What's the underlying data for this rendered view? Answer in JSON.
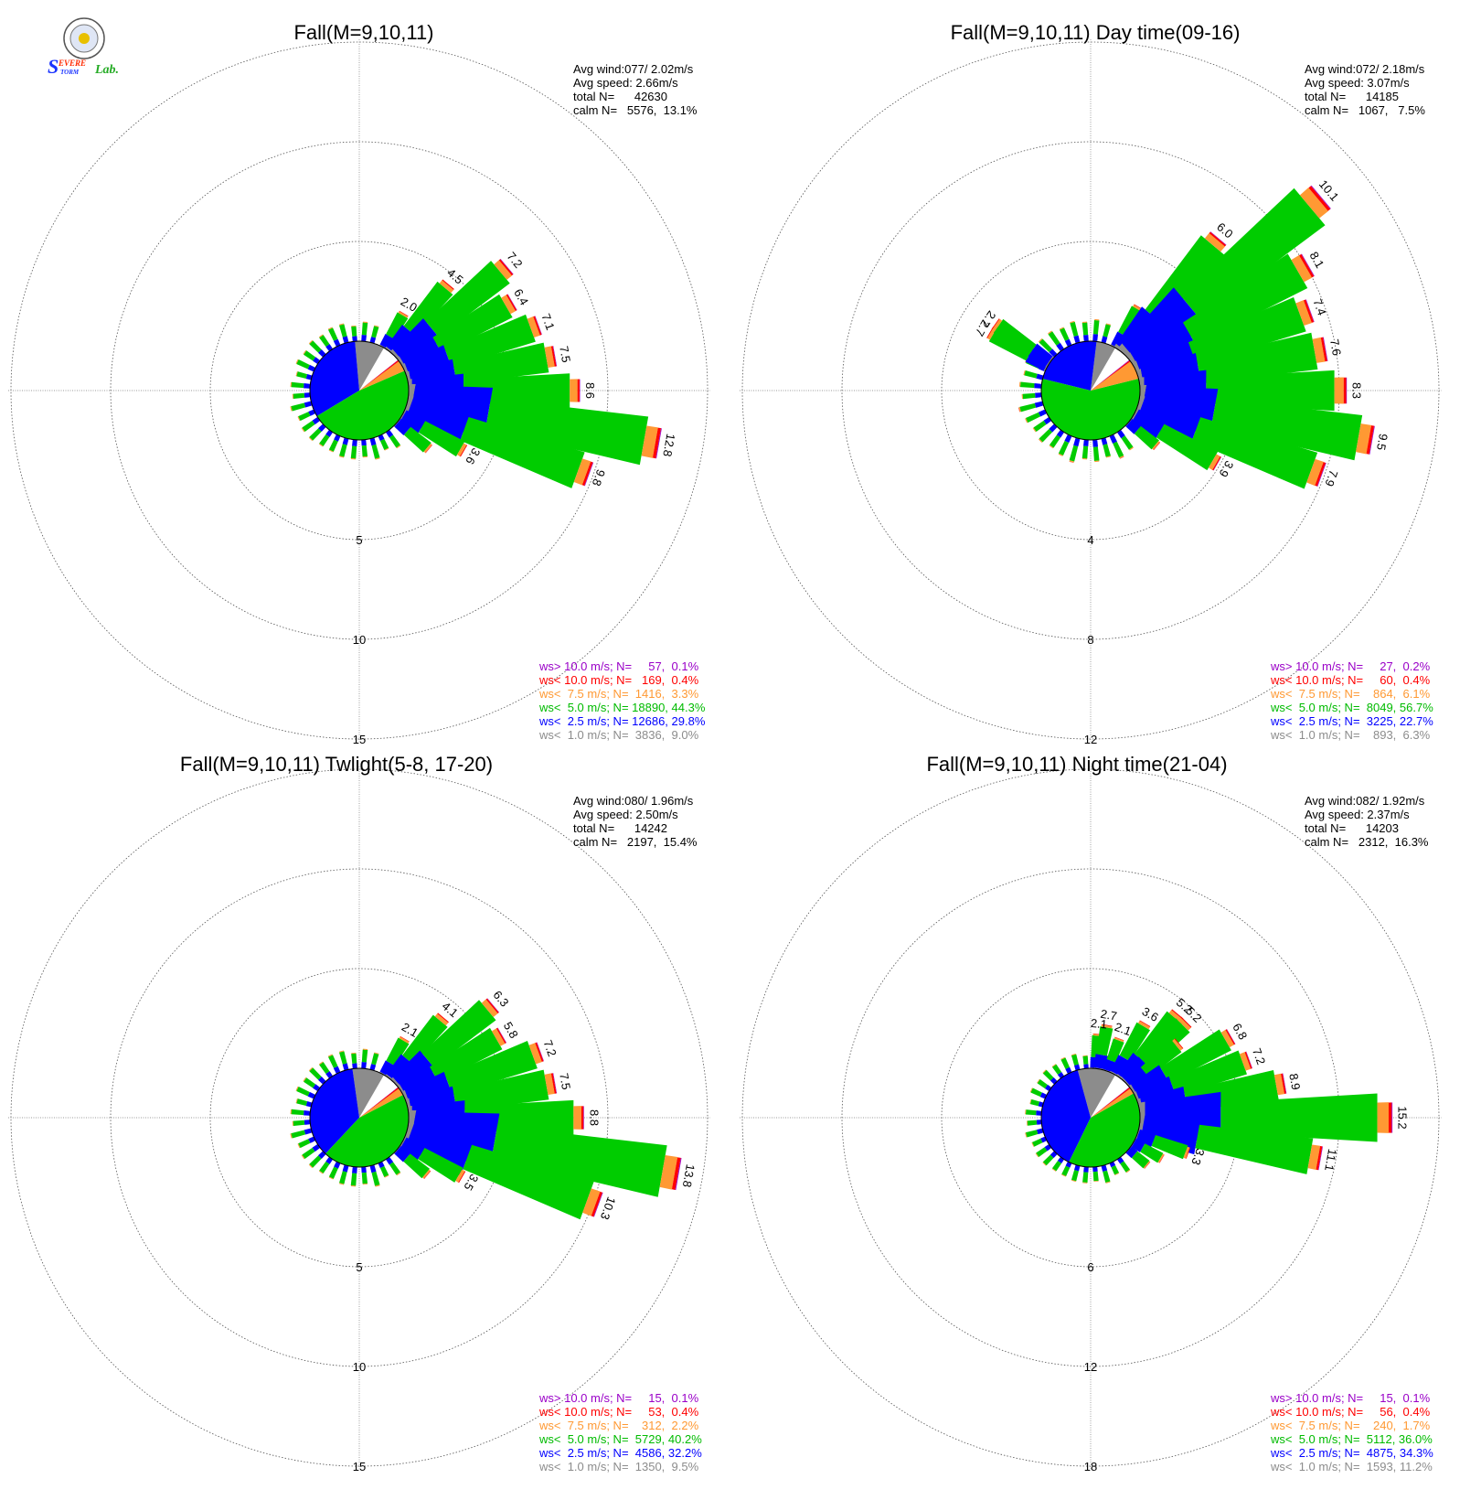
{
  "colors": {
    "gt10": "#9a00c8",
    "lt10": "#ff0000",
    "lt75": "#ff9933",
    "lt5": "#00cc00",
    "lt25": "#0000ff",
    "lt1": "#8c8c8c"
  },
  "logo": {
    "text_s": "S",
    "text_evere": "EVERE",
    "text_torm": "TORM",
    "text_lab": "Lab."
  },
  "chart_data": [
    {
      "type": "wind-rose",
      "title": "Fall(M=9,10,11)",
      "rings": [
        "5",
        "10",
        "15"
      ],
      "ring_values": [
        5,
        10,
        15
      ],
      "stats": {
        "avg_wind": "Avg wind:077/ 2.02m/s",
        "avg_speed": "Avg speed: 2.66m/s",
        "total": "total N=      42630",
        "calm": "calm N=   5576,  13.1%"
      },
      "legend": [
        "ws> 10.0 m/s; N=     57,  0.1%",
        "ws< 10.0 m/s; N=   169,  0.4%",
        "ws<  7.5 m/s; N=  1416,  3.3%",
        "ws<  5.0 m/s; N= 18890, 44.3%",
        "ws<  2.5 m/s; N= 12686, 29.8%",
        "ws<  1.0 m/s; N=  3836,  9.0%"
      ],
      "pie_fraction": [
        0.09,
        0.298,
        0.443,
        0.033,
        0.004,
        0.001
      ],
      "directions_deg": [
        30,
        40,
        50,
        60,
        70,
        80,
        90,
        100,
        110,
        120,
        130
      ],
      "direction_totals": [
        2.0,
        4.5,
        7.2,
        6.4,
        7.1,
        7.5,
        8.6,
        12.8,
        9.8,
        3.6,
        2.1
      ],
      "value_labels": [
        "2.0",
        "4.5",
        "7.2",
        "6.4",
        "7.1",
        "7.5",
        "8.6",
        "12.8",
        "9.8",
        "3.6",
        ""
      ],
      "other_totals": [
        1.0,
        0.9,
        1.0,
        0.8,
        1.1,
        0.9,
        1.0,
        1.0,
        0.9,
        0.9,
        1.0,
        1.0,
        0.9,
        1.1,
        0.9,
        1.0,
        0.8,
        1.0,
        0.9,
        1.0,
        0.9,
        1.0,
        1.0,
        0.8,
        1.0
      ]
    },
    {
      "type": "wind-rose",
      "title": "Fall(M=9,10,11) Day time(09-16)",
      "rings": [
        "4",
        "8",
        "12"
      ],
      "ring_values": [
        4,
        8,
        12
      ],
      "stats": {
        "avg_wind": "Avg wind:072/ 2.18m/s",
        "avg_speed": "Avg speed: 3.07m/s",
        "total": "total N=      14185",
        "calm": "calm N=   1067,   7.5%"
      },
      "legend": [
        "ws> 10.0 m/s; N=     27,  0.2%",
        "ws< 10.0 m/s; N=     60,  0.4%",
        "ws<  7.5 m/s; N=    864,  6.1%",
        "ws<  5.0 m/s; N=  8049, 56.7%",
        "ws<  2.5 m/s; N=  3225, 22.7%",
        "ws<  1.0 m/s; N=    893,  6.3%"
      ],
      "pie_fraction": [
        0.063,
        0.227,
        0.567,
        0.061,
        0.004,
        0.002
      ],
      "directions_deg": [
        30,
        40,
        50,
        60,
        70,
        80,
        90,
        100,
        110,
        120,
        130,
        300,
        305
      ],
      "direction_totals": [
        1.9,
        6.0,
        10.1,
        8.1,
        7.4,
        7.6,
        8.3,
        9.5,
        7.9,
        3.9,
        1.5,
        2.7,
        2.7
      ],
      "value_labels": [
        "",
        "6.0",
        "10.1",
        "8.1",
        "7.4",
        "7.6",
        "8.3",
        "9.5",
        "7.9",
        "3.9",
        "",
        "2.7",
        "2.7"
      ],
      "other_totals": [
        0.9,
        0.8,
        0.9,
        1.0,
        0.8,
        0.9,
        0.8,
        1.0,
        0.9,
        0.8,
        0.9,
        0.8,
        0.9,
        1.0,
        0.8,
        0.9,
        0.8,
        0.9,
        0.8,
        0.9,
        0.9,
        0.8,
        0.9,
        0.8
      ]
    },
    {
      "type": "wind-rose",
      "title": "Fall(M=9,10,11) Twlight(5-8, 17-20)",
      "rings": [
        "5",
        "10",
        "15"
      ],
      "ring_values": [
        5,
        10,
        15
      ],
      "stats": {
        "avg_wind": "Avg wind:080/ 1.96m/s",
        "avg_speed": "Avg speed: 2.50m/s",
        "total": "total N=      14242",
        "calm": "calm N=   2197,  15.4%"
      },
      "legend": [
        "ws> 10.0 m/s; N=     15,  0.1%",
        "ws< 10.0 m/s; N=     53,  0.4%",
        "ws<  7.5 m/s; N=    312,  2.2%",
        "ws<  5.0 m/s; N=  5729, 40.2%",
        "ws<  2.5 m/s; N=  4586, 32.2%",
        "ws<  1.0 m/s; N=  1350,  9.5%"
      ],
      "pie_fraction": [
        0.095,
        0.322,
        0.402,
        0.022,
        0.004,
        0.001
      ],
      "directions_deg": [
        30,
        40,
        50,
        60,
        70,
        80,
        90,
        100,
        110,
        120,
        130
      ],
      "direction_totals": [
        2.1,
        4.1,
        6.3,
        5.8,
        7.2,
        7.5,
        8.8,
        13.8,
        10.3,
        3.5,
        2.0
      ],
      "value_labels": [
        "2.1",
        "4.1",
        "6.3",
        "5.8",
        "7.2",
        "7.5",
        "8.8",
        "13.8",
        "10.3",
        "3.5",
        ""
      ],
      "other_totals": [
        1.0,
        0.9,
        1.0,
        0.8,
        1.1,
        0.9,
        1.0,
        1.0,
        0.9,
        0.9,
        1.0,
        1.0,
        0.9,
        1.1,
        0.9,
        1.0,
        0.8,
        1.0,
        0.9,
        1.0,
        0.9,
        1.0,
        1.0,
        0.8,
        1.0
      ]
    },
    {
      "type": "wind-rose",
      "title": "Fall(M=9,10,11) Night time(21-04)",
      "rings": [
        "6",
        "12",
        "18"
      ],
      "ring_values": [
        6,
        12,
        18
      ],
      "stats": {
        "avg_wind": "Avg wind:082/ 1.92m/s",
        "avg_speed": "Avg speed: 2.37m/s",
        "total": "total N=      14203",
        "calm": "calm N=   2312,  16.3%"
      },
      "legend": [
        "ws> 10.0 m/s; N=     15,  0.1%",
        "ws< 10.0 m/s; N=     56,  0.4%",
        "ws<  7.5 m/s; N=    240,  1.7%",
        "ws<  5.0 m/s; N=  5112, 36.0%",
        "ws<  2.5 m/s; N=  4875, 34.3%",
        "ws<  1.0 m/s; N=  1593, 11.2%"
      ],
      "pie_fraction": [
        0.112,
        0.343,
        0.36,
        0.017,
        0.004,
        0.001
      ],
      "directions_deg": [
        5,
        10,
        20,
        30,
        40,
        45,
        50,
        60,
        70,
        80,
        90,
        100,
        110,
        120,
        130
      ],
      "direction_totals": [
        2.1,
        2.7,
        2.1,
        3.6,
        5.2,
        5.2,
        4.0,
        6.8,
        7.2,
        8.9,
        15.2,
        11.1,
        3.3,
        2.0,
        1.5
      ],
      "value_labels": [
        "2.1",
        "2.7",
        "2.1",
        "3.6",
        "5.2",
        "5.2",
        "",
        "6.8",
        "7.2",
        "8.9",
        "15.2",
        "11.1",
        "3.3",
        "",
        ""
      ],
      "other_totals": [
        1.0,
        0.9,
        1.0,
        0.8,
        1.1,
        0.9,
        1.0,
        1.0,
        0.9,
        0.9,
        1.0,
        1.0,
        0.9,
        1.1,
        0.9,
        1.0,
        0.8,
        1.0,
        0.9,
        1.0,
        0.9,
        1.0,
        1.0,
        0.8
      ]
    }
  ]
}
